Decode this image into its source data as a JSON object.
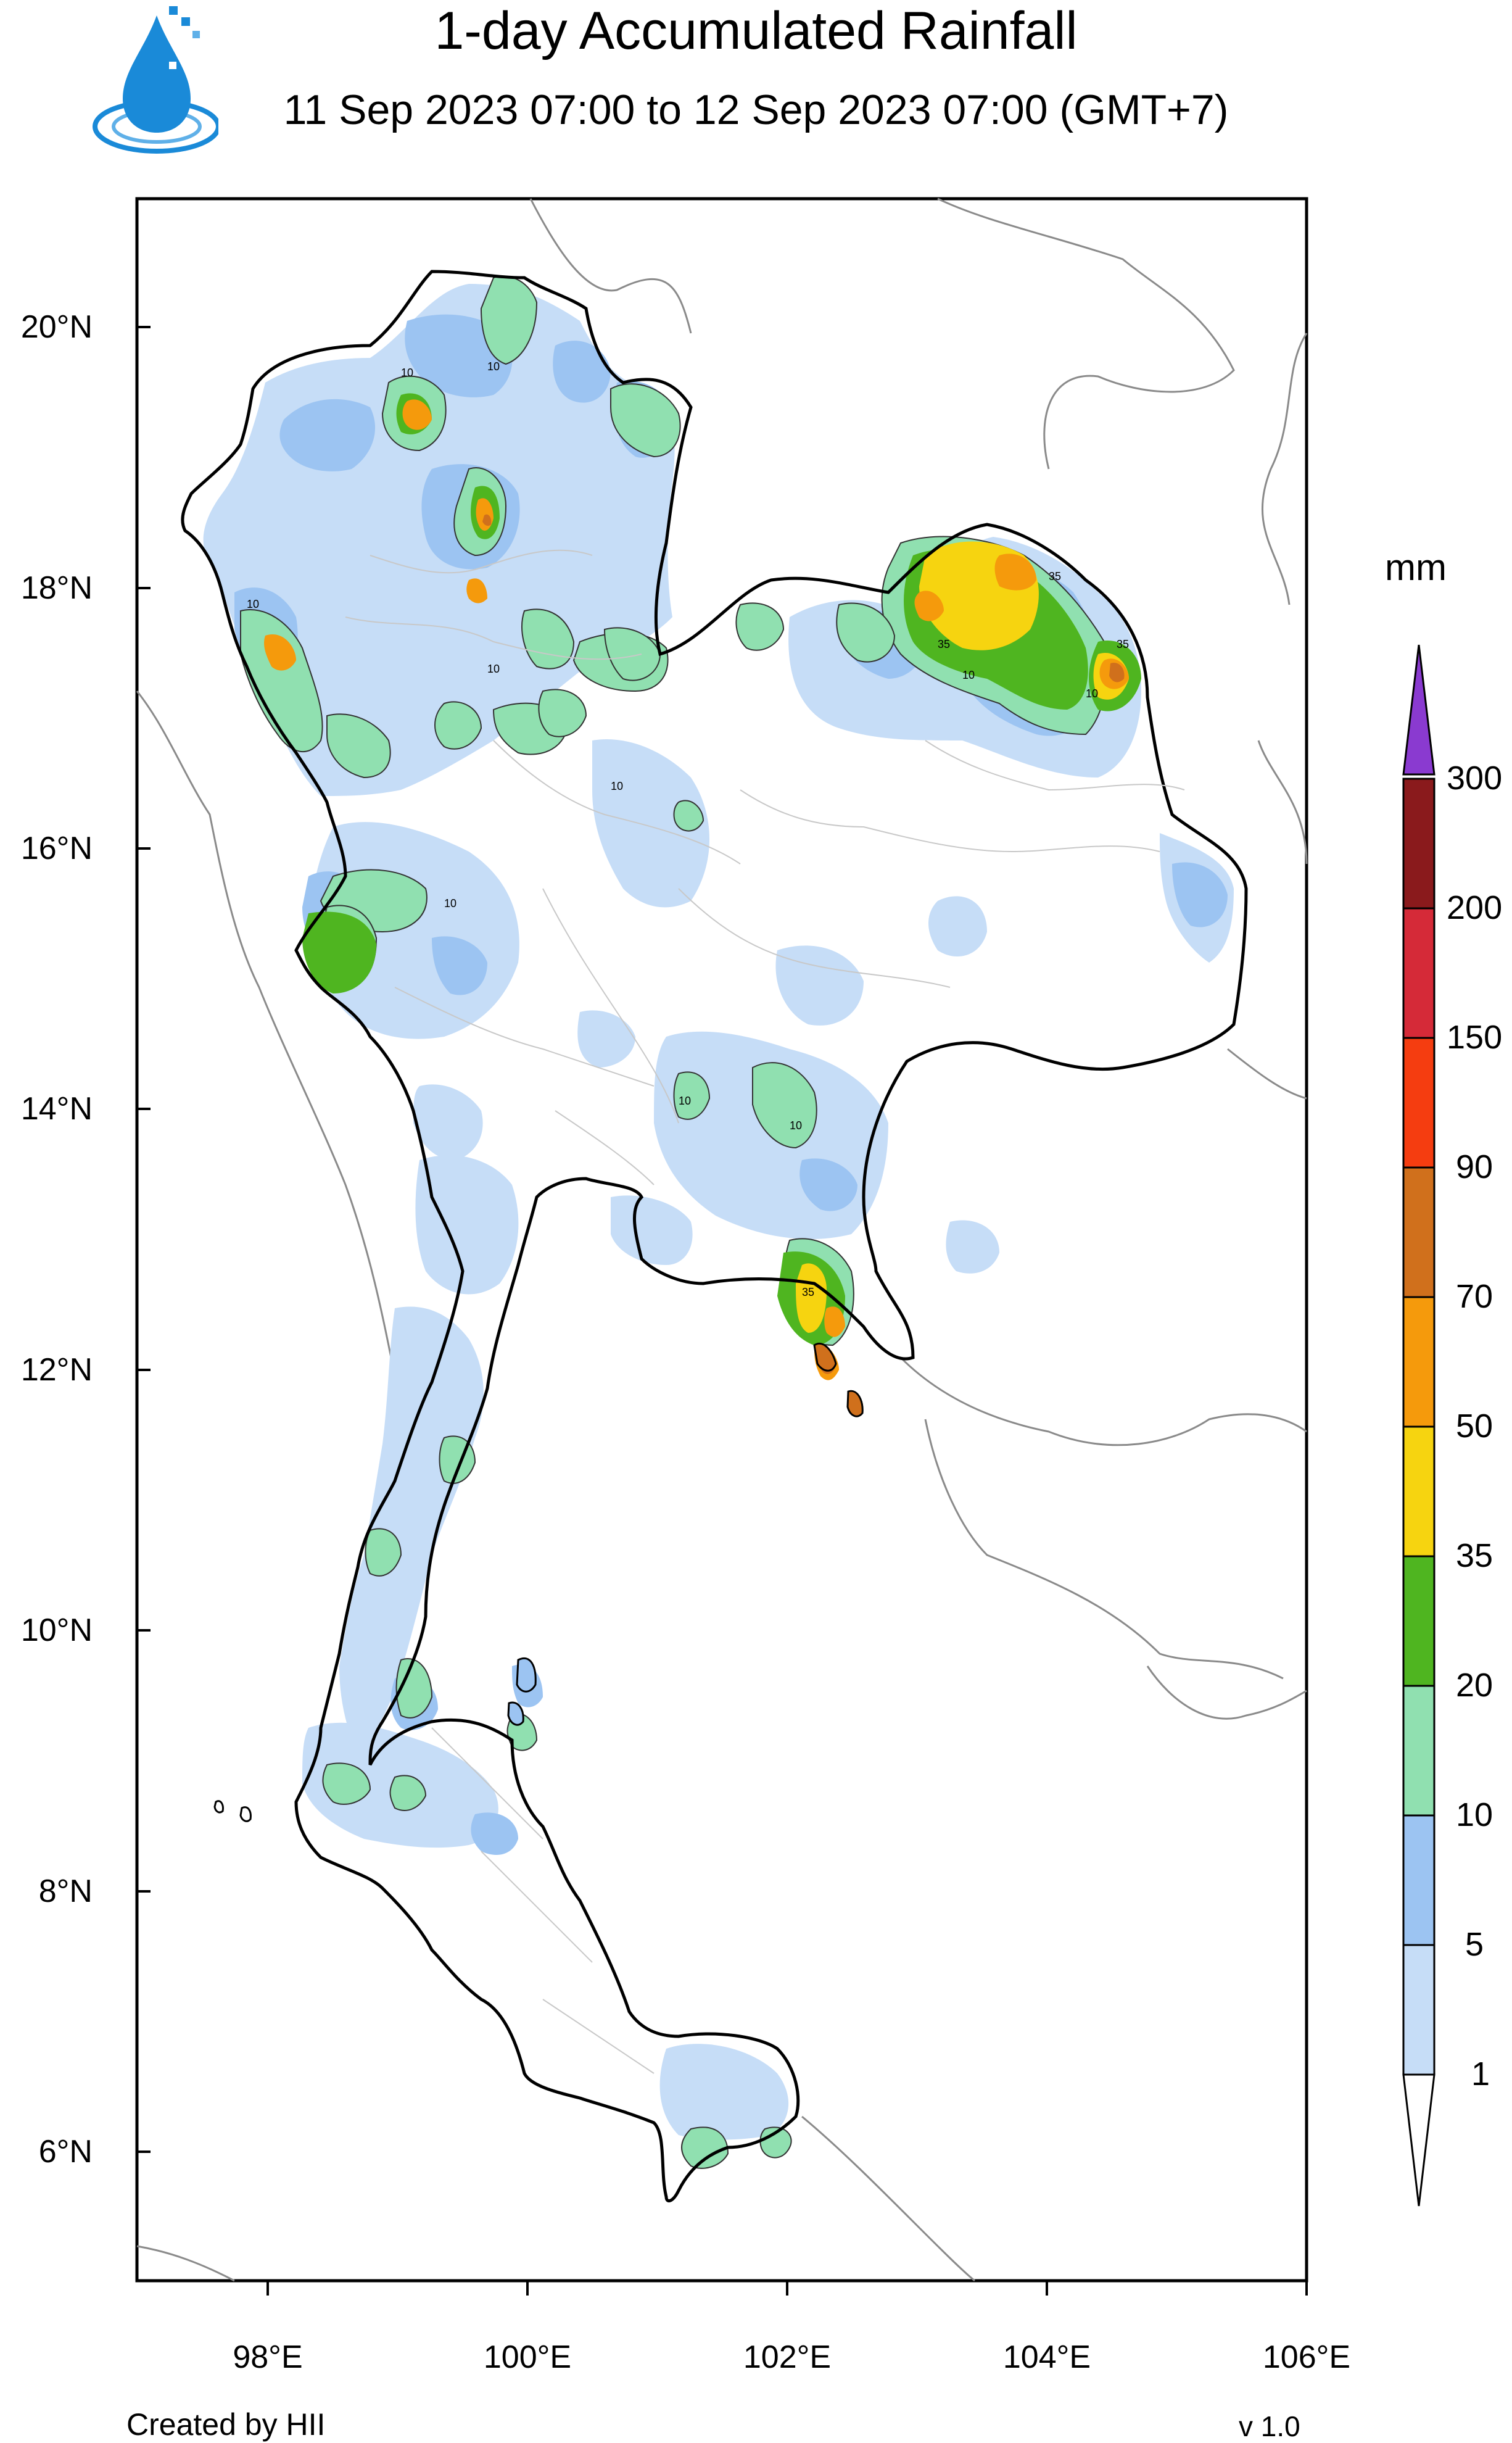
{
  "title": "1-day Accumulated Rainfall",
  "subtitle": "11 Sep 2023 07:00 to 12 Sep 2023 07:00 (GMT+7)",
  "logo_icon": "water-drop-logo-icon",
  "lat_labels": [
    "20°N",
    "18°N",
    "16°N",
    "14°N",
    "12°N",
    "10°N",
    "8°N",
    "6°N"
  ],
  "lon_labels": [
    "98°E",
    "100°E",
    "102°E",
    "104°E",
    "106°E"
  ],
  "colorbar": {
    "unit": "mm",
    "levels": [
      "1",
      "5",
      "10",
      "20",
      "35",
      "50",
      "70",
      "90",
      "150",
      "200",
      "300"
    ],
    "colors": [
      "#c6ddf7",
      "#9cc4f2",
      "#90e0b0",
      "#4fb520",
      "#f6d410",
      "#f59a0c",
      "#d0701c",
      "#f53d10",
      "#d52a38",
      "#8a1a1c",
      "#8a3ad0"
    ]
  },
  "footer": {
    "credit": "Created by HII",
    "version": "v 1.0"
  }
}
